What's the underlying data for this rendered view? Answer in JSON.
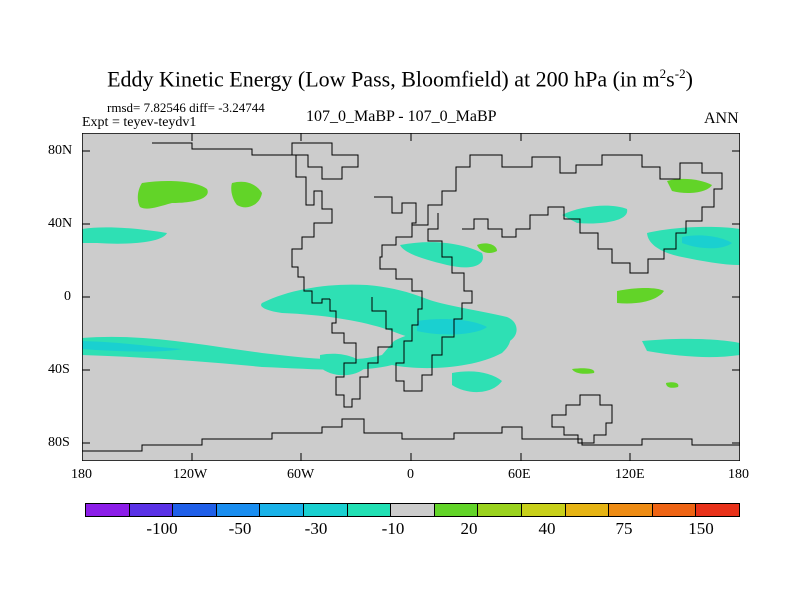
{
  "title": {
    "text": "Eddy Kinetic Energy (Low Pass, Bloomfield) at 200 hPa (in m",
    "sup1": "2",
    "mid": "s",
    "sup2": "-2",
    "close": ")"
  },
  "stats": "rmsd= 7.82546 diff= -3.24744",
  "expt": "Expt = teyev-teydv1",
  "case": "107_0_MaBP - 107_0_MaBP",
  "season": "ANN",
  "lat_labels": [
    "80N",
    "40N",
    "0",
    "40S",
    "80S"
  ],
  "lon_labels": [
    "180",
    "120W",
    "60W",
    "0",
    "60E",
    "120E",
    "180"
  ],
  "colorbar": {
    "colors": [
      "#8c1ee8",
      "#5a32e6",
      "#1f5fe8",
      "#1a8ef0",
      "#1ab2e8",
      "#1ad0d0",
      "#22e0b4",
      "#cccccc",
      "#62d428",
      "#9ad21e",
      "#c8d01a",
      "#e6b414",
      "#ee8c14",
      "#ee6414",
      "#e8321a"
    ],
    "labels": [
      "-100",
      "-50",
      "-30",
      "-10",
      "20",
      "40",
      "75",
      "150"
    ]
  },
  "field_colors": {
    "background": "#cccccc",
    "neg_light": "#2ee0b4",
    "neg_mid": "#1ad0d0",
    "pos_light": "#62d428"
  }
}
